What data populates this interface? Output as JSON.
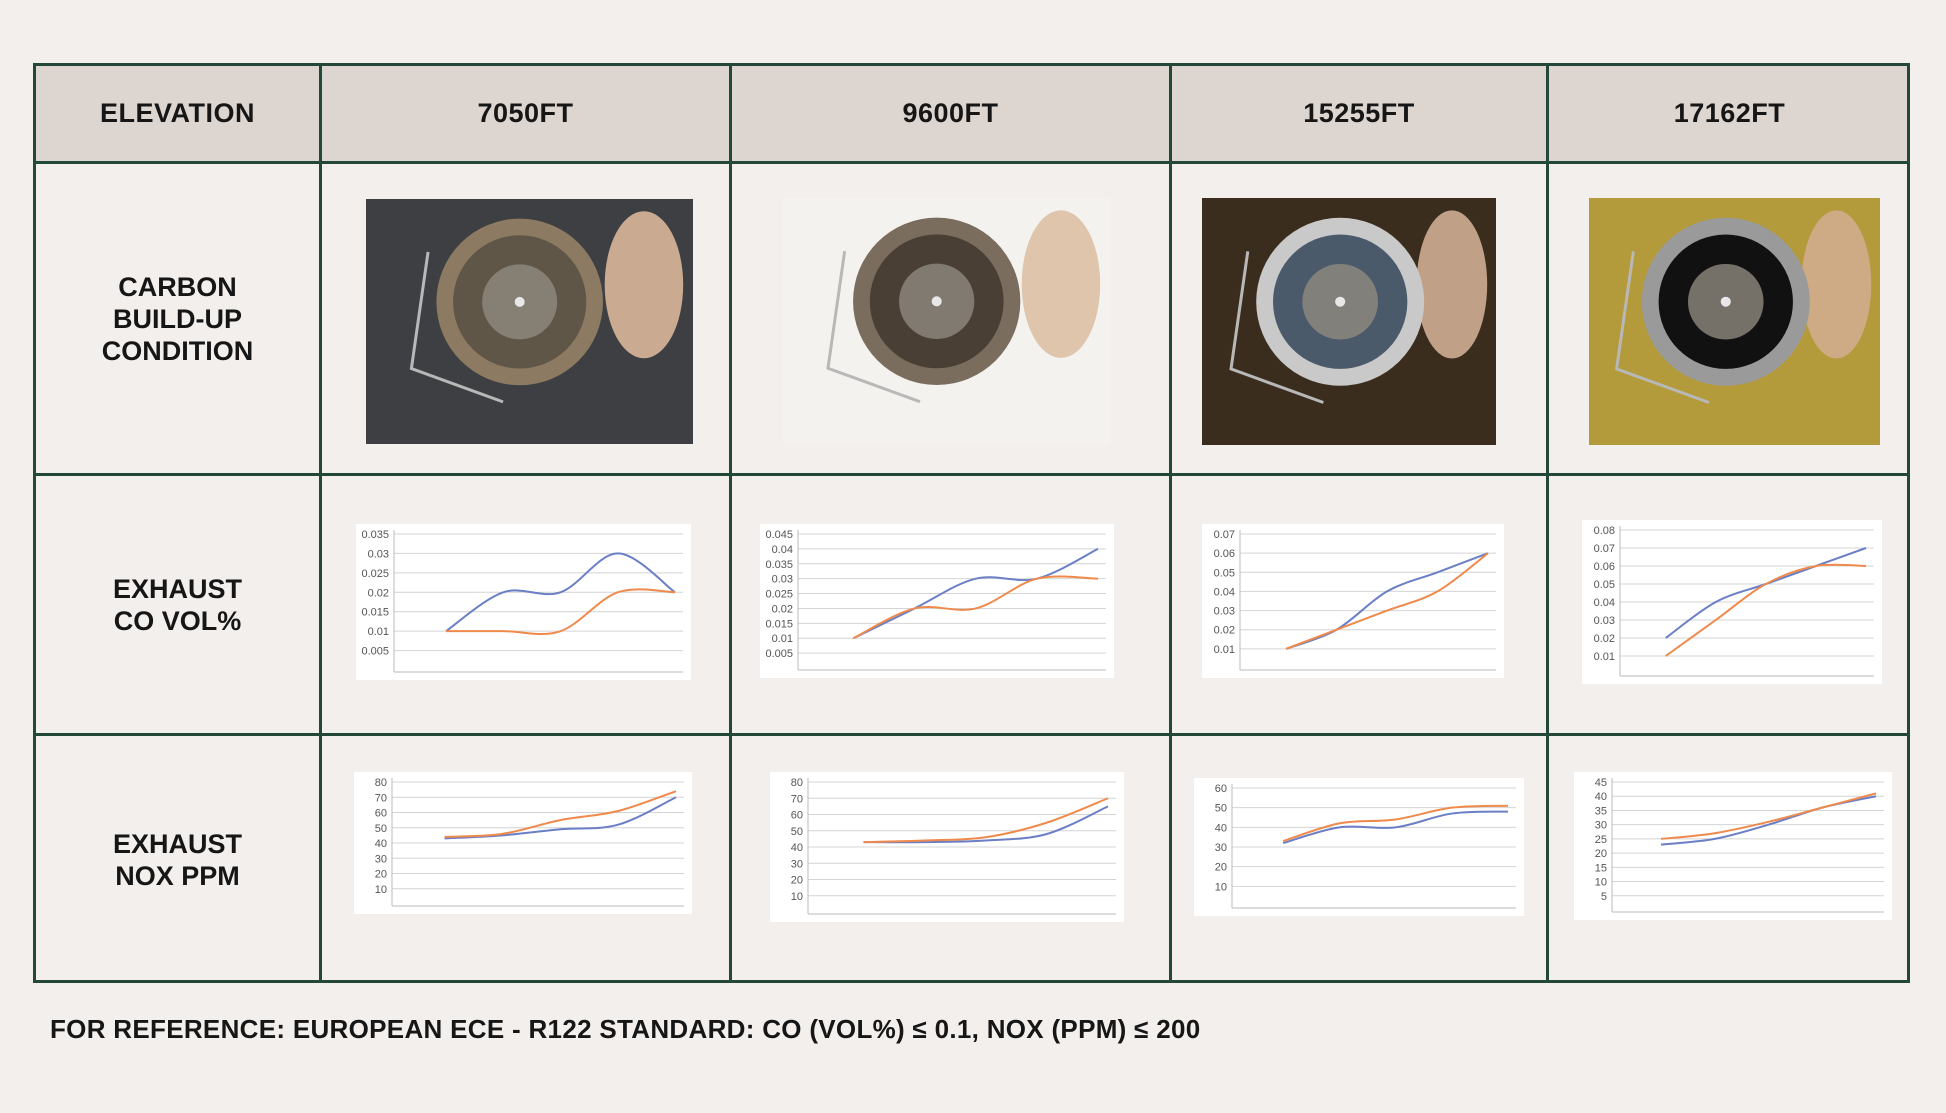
{
  "table": {
    "header_label": "ELEVATION",
    "columns": [
      "7050FT",
      "9600FT",
      "15255FT",
      "17162FT"
    ],
    "rows": [
      {
        "label": "CARBON\nBUILD-UP\nCONDITION"
      },
      {
        "label": "EXHAUST\nCO VOL%"
      },
      {
        "label": "EXHAUST\nNOX PPM"
      }
    ]
  },
  "photos": [
    {
      "bg": "#3d3f42",
      "ring": "#8c7b62",
      "inner": "#5f5647",
      "hand": "#d9b79a"
    },
    {
      "bg": "#f4f2ee",
      "ring": "#7a6d5e",
      "inner": "#4a3f35",
      "hand": "#dcc0a4"
    },
    {
      "bg": "#3b2d1d",
      "ring": "#c9c9c9",
      "inner": "#4b5a6a",
      "hand": "#cfae94"
    },
    {
      "bg": "#b39a3a",
      "ring": "#9a9a9a",
      "inner": "#111111",
      "hand": "#d0ad8e"
    }
  ],
  "colors": {
    "series_blue": "#6a7fc6",
    "series_orange": "#ef8a4c",
    "grid": "#d4d4d4",
    "border": "#23483a",
    "header_bg": "#ddd5d0"
  },
  "chart_data": [
    {
      "type": "line",
      "row": "EXHAUST CO VOL%",
      "column": "7050FT",
      "ylim": [
        0,
        0.035
      ],
      "yticks": [
        "0.035",
        "0.03",
        "0.025",
        "0.02",
        "0.015",
        "0.01",
        "0.005"
      ],
      "x": [
        0,
        1,
        2,
        3,
        4
      ],
      "series": [
        {
          "values": [
            0.01,
            0.02,
            0.02,
            0.03,
            0.02
          ]
        },
        {
          "values": [
            0.01,
            0.01,
            0.01,
            0.02,
            0.02
          ]
        }
      ]
    },
    {
      "type": "line",
      "row": "EXHAUST CO VOL%",
      "column": "9600FT",
      "ylim": [
        0,
        0.045
      ],
      "yticks": [
        "0.045",
        "0.04",
        "0.035",
        "0.03",
        "0.025",
        "0.02",
        "0.015",
        "0.01",
        "0.005"
      ],
      "x": [
        0,
        1,
        2,
        3,
        4
      ],
      "series": [
        {
          "values": [
            0.01,
            0.02,
            0.03,
            0.03,
            0.04
          ]
        },
        {
          "values": [
            0.01,
            0.02,
            0.02,
            0.03,
            0.03
          ]
        }
      ]
    },
    {
      "type": "line",
      "row": "EXHAUST CO VOL%",
      "column": "15255FT",
      "ylim": [
        0,
        0.07
      ],
      "yticks": [
        "0.07",
        "0.06",
        "0.05",
        "0.04",
        "0.03",
        "0.02",
        "0.01"
      ],
      "x": [
        0,
        1,
        2,
        3,
        4
      ],
      "series": [
        {
          "values": [
            0.01,
            0.02,
            0.04,
            0.05,
            0.06
          ]
        },
        {
          "values": [
            0.01,
            0.02,
            0.03,
            0.04,
            0.06
          ]
        }
      ]
    },
    {
      "type": "line",
      "row": "EXHAUST CO VOL%",
      "column": "17162FT",
      "ylim": [
        0,
        0.08
      ],
      "yticks": [
        "0.08",
        "0.07",
        "0.06",
        "0.05",
        "0.04",
        "0.03",
        "0.02",
        "0.01"
      ],
      "x": [
        0,
        1,
        2,
        3,
        4
      ],
      "series": [
        {
          "values": [
            0.02,
            0.04,
            0.05,
            0.06,
            0.07
          ]
        },
        {
          "values": [
            0.01,
            0.03,
            0.05,
            0.06,
            0.06
          ]
        }
      ]
    },
    {
      "type": "line",
      "row": "EXHAUST NOX PPM",
      "column": "7050FT",
      "ylim": [
        0,
        80
      ],
      "yticks": [
        "80",
        "70",
        "60",
        "50",
        "40",
        "30",
        "20",
        "10"
      ],
      "x": [
        0,
        1,
        2,
        3,
        4
      ],
      "series": [
        {
          "values": [
            43,
            45,
            49,
            52,
            70
          ]
        },
        {
          "values": [
            44,
            46,
            55,
            61,
            74
          ]
        }
      ]
    },
    {
      "type": "line",
      "row": "EXHAUST NOX PPM",
      "column": "9600FT",
      "ylim": [
        0,
        80
      ],
      "yticks": [
        "80",
        "70",
        "60",
        "50",
        "40",
        "30",
        "20",
        "10"
      ],
      "x": [
        0,
        1,
        2,
        3,
        4
      ],
      "series": [
        {
          "values": [
            43,
            43,
            44,
            48,
            65
          ]
        },
        {
          "values": [
            43,
            44,
            46,
            55,
            70
          ]
        }
      ]
    },
    {
      "type": "line",
      "row": "EXHAUST NOX PPM",
      "column": "15255FT",
      "ylim": [
        0,
        60
      ],
      "yticks": [
        "60",
        "50",
        "40",
        "30",
        "20",
        "10"
      ],
      "x": [
        0,
        1,
        2,
        3,
        4
      ],
      "series": [
        {
          "values": [
            32,
            40,
            40,
            47,
            48
          ]
        },
        {
          "values": [
            33,
            42,
            44,
            50,
            51
          ]
        }
      ]
    },
    {
      "type": "line",
      "row": "EXHAUST NOX PPM",
      "column": "17162FT",
      "ylim": [
        0,
        45
      ],
      "yticks": [
        "45",
        "40",
        "35",
        "30",
        "25",
        "20",
        "15",
        "10",
        "5"
      ],
      "x": [
        0,
        1,
        2,
        3,
        4
      ],
      "series": [
        {
          "values": [
            23,
            25,
            30,
            36,
            40
          ]
        },
        {
          "values": [
            25,
            27,
            31,
            36,
            41
          ]
        }
      ]
    }
  ],
  "footnote": "FOR REFERENCE: EUROPEAN ECE - R122 STANDARD: CO (VOL%) ≤ 0.1, NOX (PPM) ≤ 200"
}
